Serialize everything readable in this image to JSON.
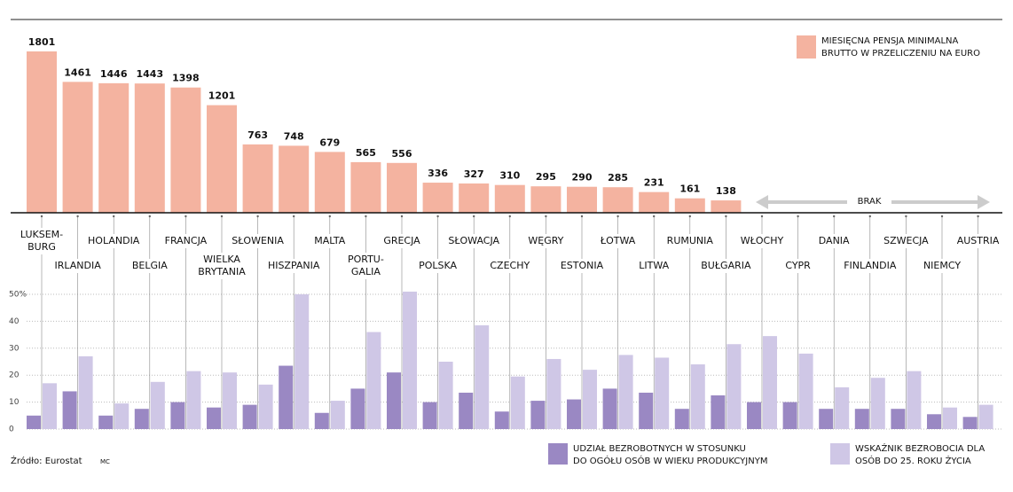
{
  "chart_data": [
    {
      "type": "bar",
      "categories": [
        "LUKSEM-\nBURG",
        "IRLANDIA",
        "HOLANDIA",
        "BELGIA",
        "FRANCJA",
        "WIELKA\nBRYTANIA",
        "SŁOWENIA",
        "HISZPANIA",
        "MALTA",
        "PORTU-\nGALIA",
        "GRECJA",
        "POLSKA",
        "SŁOWACJA",
        "CZECHY",
        "WĘGRY",
        "ESTONIA",
        "ŁOTWA",
        "LITWA",
        "RUMUNIA",
        "BUŁGARIA",
        "WŁOCHY",
        "CYPR",
        "DANIA",
        "FINLANDIA",
        "SZWECJA",
        "NIEMCY",
        "AUSTRIA"
      ],
      "series": [
        {
          "name": "MIESIĘCNA PENSJA MINIMALNA\nBRUTTO W PRZELICZENIU NA EURO",
          "color": "#f4b3a0",
          "values": [
            1801,
            1461,
            1446,
            1443,
            1398,
            1201,
            763,
            748,
            679,
            565,
            556,
            336,
            327,
            310,
            295,
            290,
            285,
            231,
            161,
            138,
            null,
            null,
            null,
            null,
            null,
            null,
            null
          ]
        }
      ],
      "annotation": "BRAK"
    },
    {
      "type": "bar",
      "ylim": [
        0,
        52
      ],
      "yticks": [
        0,
        10,
        20,
        30,
        40,
        {
          "value": 50,
          "label": "50%"
        }
      ],
      "grid": true,
      "series": [
        {
          "name": "UDZIAŁ BEZROBOTNYCH W STOSUNKU\nDO OGÓŁU OSÓB W WIEKU PRODUKCYJNYM",
          "color": "#9a88c3",
          "values": [
            5,
            14,
            5,
            7.5,
            10,
            8,
            9,
            23.5,
            6,
            15,
            21,
            10,
            13.5,
            6.5,
            10.5,
            11,
            15,
            13.5,
            7.5,
            12.5,
            10,
            10,
            7.5,
            7.5,
            7.5,
            5.5,
            4.5
          ]
        },
        {
          "name": "WSKAŹNIK BEZROBOCIA DLA\nOSÓB DO 25. ROKU ŻYCIA",
          "color": "#cfc7e6",
          "values": [
            17,
            27,
            9.5,
            17.5,
            21.5,
            21,
            16.5,
            50,
            10.5,
            36,
            51,
            25,
            38.5,
            19.5,
            26,
            22,
            27.5,
            26.5,
            24,
            31.5,
            34.5,
            28,
            15.5,
            19,
            21.5,
            8,
            9
          ]
        }
      ]
    }
  ],
  "source": "Źródło: Eurostat",
  "author": "MC"
}
